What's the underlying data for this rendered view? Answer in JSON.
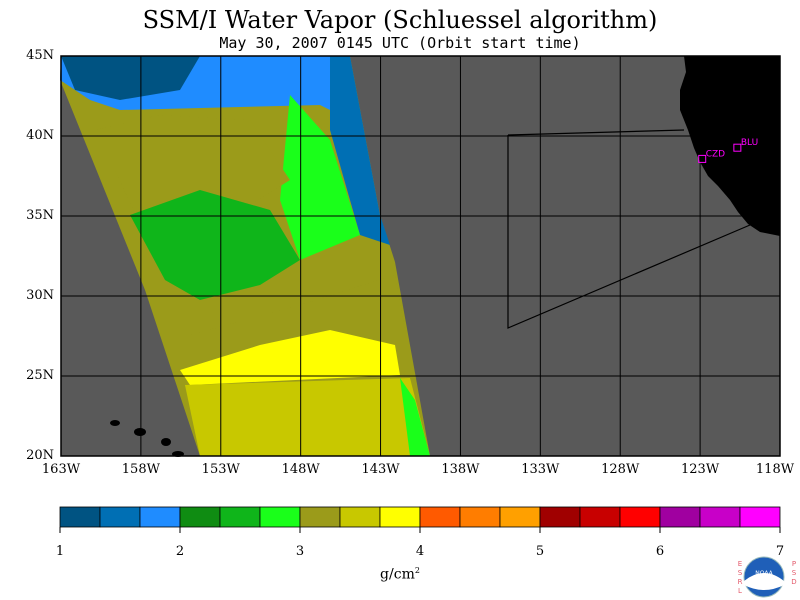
{
  "title": "SSM/I Water Vapor (Schluessel algorithm)",
  "subtitle": "May 30, 2007  0145 UTC  (Orbit start time)",
  "map": {
    "lat_labels": [
      "45N",
      "40N",
      "35N",
      "30N",
      "25N",
      "20N"
    ],
    "lon_labels": [
      "163W",
      "158W",
      "153W",
      "148W",
      "143W",
      "138W",
      "133W",
      "128W",
      "123W",
      "118W"
    ],
    "lat_range": [
      20,
      45
    ],
    "lon_range": [
      -163,
      -118
    ],
    "stations": [
      {
        "label": "CZD",
        "lon": -122.9,
        "lat": 38.6
      },
      {
        "label": "BLU",
        "lon": -120.7,
        "lat": 39.3
      }
    ],
    "colors": {
      "ocean": "#595959",
      "land": "#000000",
      "station": "#ff00ff",
      "grid": "#000000"
    }
  },
  "colorbar": {
    "tick_labels": [
      "1",
      "2",
      "3",
      "4",
      "5",
      "6",
      "7"
    ],
    "units": "g/cm",
    "units_sup": "2",
    "colors": [
      "#005382",
      "#006fb4",
      "#1f8cff",
      "#0f8c12",
      "#0fb51a",
      "#1aff1a",
      "#9b9b1a",
      "#c8c800",
      "#ffff00",
      "#ff5a00",
      "#ff7d00",
      "#ffa000",
      "#a00000",
      "#c80000",
      "#ff0000",
      "#a000a0",
      "#c800c8",
      "#ff00ff"
    ]
  },
  "logo": {
    "esrl": [
      "E",
      "S",
      "R",
      "L"
    ],
    "psd": [
      "P",
      "S",
      "D"
    ],
    "noaa": "NOAA"
  }
}
